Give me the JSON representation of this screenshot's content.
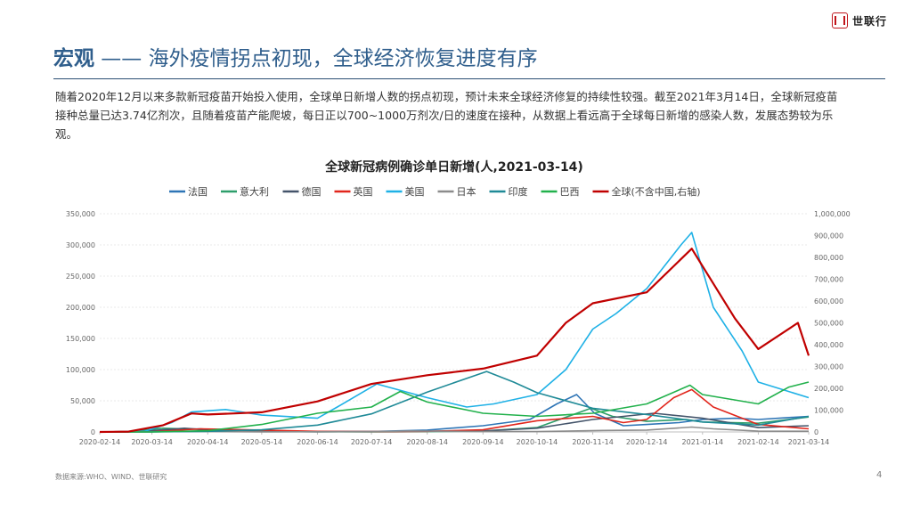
{
  "logo": {
    "text": "世联行"
  },
  "header": {
    "title_bold": "宏观",
    "title_rest": " —— 海外疫情拐点初现，全球经济恢复进度有序"
  },
  "intro": "随着2020年12月以来多款新冠疫苗开始投入使用，全球单日新增人数的拐点初现，预计未来全球经济修复的持续性较强。截至2021年3月14日，全球新冠疫苗接种总量已达3.74亿剂次，且随着疫苗产能爬坡，每日正以700~1000万剂次/日的速度在接种，从数据上看远高于全球每日新增的感染人数，发展态势较为乐观。",
  "footer": {
    "source": "数据来源:WHO、WIND、世联研究",
    "page": "4"
  },
  "chart_data": {
    "type": "line",
    "title": "全球新冠病例确诊单日新增(人,2021-03-14)",
    "legend_position": "top",
    "grid": true,
    "x_start": "2020-02-14",
    "x_end": "2021-03-14",
    "x_ticks": [
      "2020-02-14",
      "2020-03-14",
      "2020-04-14",
      "2020-05-14",
      "2020-06-14",
      "2020-07-14",
      "2020-08-14",
      "2020-09-14",
      "2020-10-14",
      "2020-11-14",
      "2020-12-14",
      "2021-01-14",
      "2021-02-14",
      "2021-03-14"
    ],
    "y_left": {
      "min": 0,
      "max": 350000,
      "ticks": [
        "0",
        "50,000",
        "100,000",
        "150,000",
        "200,000",
        "250,000",
        "300,000",
        "350,000"
      ]
    },
    "y_right": {
      "min": 0,
      "max": 1000000,
      "ticks": [
        "0",
        "100,000",
        "200,000",
        "300,000",
        "400,000",
        "500,000",
        "600,000",
        "700,000",
        "800,000",
        "900,000",
        "1,000,000"
      ]
    },
    "series": [
      {
        "name": "法国",
        "color": "#2e75b6",
        "axis": "left",
        "points": [
          [
            "2020-02-14",
            0
          ],
          [
            "2020-03-01",
            100
          ],
          [
            "2020-03-25",
            4000
          ],
          [
            "2020-04-10",
            5000
          ],
          [
            "2020-05-01",
            1000
          ],
          [
            "2020-06-01",
            500
          ],
          [
            "2020-07-15",
            800
          ],
          [
            "2020-08-14",
            3000
          ],
          [
            "2020-09-14",
            10000
          ],
          [
            "2020-10-10",
            20000
          ],
          [
            "2020-10-25",
            45000
          ],
          [
            "2020-11-05",
            60000
          ],
          [
            "2020-11-15",
            30000
          ],
          [
            "2020-12-01",
            10000
          ],
          [
            "2020-12-14",
            12000
          ],
          [
            "2021-01-01",
            15000
          ],
          [
            "2021-01-14",
            20000
          ],
          [
            "2021-02-01",
            22000
          ],
          [
            "2021-02-14",
            20000
          ],
          [
            "2021-03-14",
            25000
          ]
        ]
      },
      {
        "name": "意大利",
        "color": "#2e9e6b",
        "axis": "left",
        "points": [
          [
            "2020-02-14",
            0
          ],
          [
            "2020-03-01",
            500
          ],
          [
            "2020-03-20",
            6000
          ],
          [
            "2020-04-10",
            4000
          ],
          [
            "2020-05-10",
            1000
          ],
          [
            "2020-06-14",
            300
          ],
          [
            "2020-07-14",
            200
          ],
          [
            "2020-08-14",
            500
          ],
          [
            "2020-09-14",
            1500
          ],
          [
            "2020-10-14",
            7000
          ],
          [
            "2020-11-13",
            38000
          ],
          [
            "2020-11-25",
            25000
          ],
          [
            "2020-12-14",
            17000
          ],
          [
            "2021-01-05",
            20000
          ],
          [
            "2021-01-14",
            16000
          ],
          [
            "2021-02-14",
            14000
          ],
          [
            "2021-03-14",
            24000
          ]
        ]
      },
      {
        "name": "德国",
        "color": "#44546a",
        "axis": "left",
        "points": [
          [
            "2020-02-14",
            0
          ],
          [
            "2020-03-10",
            1000
          ],
          [
            "2020-04-01",
            6000
          ],
          [
            "2020-04-20",
            2000
          ],
          [
            "2020-05-14",
            700
          ],
          [
            "2020-06-14",
            300
          ],
          [
            "2020-07-14",
            400
          ],
          [
            "2020-08-14",
            1200
          ],
          [
            "2020-09-14",
            1500
          ],
          [
            "2020-10-14",
            6000
          ],
          [
            "2020-11-14",
            20000
          ],
          [
            "2020-12-18",
            30000
          ],
          [
            "2021-01-14",
            22000
          ],
          [
            "2021-02-14",
            7000
          ],
          [
            "2021-03-14",
            10000
          ]
        ]
      },
      {
        "name": "英国",
        "color": "#e1261c",
        "axis": "left",
        "points": [
          [
            "2020-02-14",
            0
          ],
          [
            "2020-03-14",
            300
          ],
          [
            "2020-04-10",
            5000
          ],
          [
            "2020-05-14",
            3000
          ],
          [
            "2020-06-14",
            1000
          ],
          [
            "2020-07-14",
            600
          ],
          [
            "2020-08-14",
            1000
          ],
          [
            "2020-09-14",
            3500
          ],
          [
            "2020-10-14",
            18000
          ],
          [
            "2020-11-14",
            25000
          ],
          [
            "2020-12-01",
            15000
          ],
          [
            "2020-12-14",
            20000
          ],
          [
            "2020-12-29",
            55000
          ],
          [
            "2021-01-08",
            68000
          ],
          [
            "2021-01-20",
            40000
          ],
          [
            "2021-02-14",
            12000
          ],
          [
            "2021-03-14",
            5000
          ]
        ]
      },
      {
        "name": "美国",
        "color": "#1fb1e6",
        "axis": "left",
        "points": [
          [
            "2020-02-14",
            0
          ],
          [
            "2020-03-10",
            1000
          ],
          [
            "2020-03-25",
            15000
          ],
          [
            "2020-04-05",
            32000
          ],
          [
            "2020-04-24",
            36000
          ],
          [
            "2020-05-14",
            27000
          ],
          [
            "2020-06-14",
            22000
          ],
          [
            "2020-06-25",
            40000
          ],
          [
            "2020-07-17",
            77000
          ],
          [
            "2020-08-14",
            55000
          ],
          [
            "2020-09-05",
            40000
          ],
          [
            "2020-09-20",
            45000
          ],
          [
            "2020-10-14",
            60000
          ],
          [
            "2020-10-30",
            100000
          ],
          [
            "2020-11-14",
            165000
          ],
          [
            "2020-11-27",
            190000
          ],
          [
            "2020-12-14",
            230000
          ],
          [
            "2021-01-02",
            300000
          ],
          [
            "2021-01-08",
            320000
          ],
          [
            "2021-01-20",
            200000
          ],
          [
            "2021-02-05",
            130000
          ],
          [
            "2021-02-14",
            80000
          ],
          [
            "2021-03-14",
            55000
          ]
        ]
      },
      {
        "name": "日本",
        "color": "#8c8c8c",
        "axis": "left",
        "points": [
          [
            "2020-02-14",
            0
          ],
          [
            "2020-04-14",
            500
          ],
          [
            "2020-05-14",
            100
          ],
          [
            "2020-07-14",
            600
          ],
          [
            "2020-08-05",
            1500
          ],
          [
            "2020-09-14",
            600
          ],
          [
            "2020-10-14",
            600
          ],
          [
            "2020-11-20",
            2500
          ],
          [
            "2020-12-14",
            3000
          ],
          [
            "2021-01-08",
            7800
          ],
          [
            "2021-01-20",
            5000
          ],
          [
            "2021-02-14",
            1300
          ],
          [
            "2021-03-14",
            1200
          ]
        ]
      },
      {
        "name": "印度",
        "color": "#1f8a97",
        "axis": "left",
        "points": [
          [
            "2020-02-14",
            0
          ],
          [
            "2020-03-14",
            50
          ],
          [
            "2020-04-14",
            1000
          ],
          [
            "2020-05-14",
            3500
          ],
          [
            "2020-06-14",
            11000
          ],
          [
            "2020-07-14",
            29000
          ],
          [
            "2020-08-14",
            64000
          ],
          [
            "2020-09-16",
            97000
          ],
          [
            "2020-10-01",
            80000
          ],
          [
            "2020-10-14",
            63000
          ],
          [
            "2020-11-14",
            38000
          ],
          [
            "2020-12-14",
            28000
          ],
          [
            "2021-01-14",
            16000
          ],
          [
            "2021-02-14",
            11000
          ],
          [
            "2021-03-14",
            25000
          ]
        ]
      },
      {
        "name": "巴西",
        "color": "#22b14c",
        "axis": "left",
        "points": [
          [
            "2020-02-14",
            0
          ],
          [
            "2020-03-14",
            50
          ],
          [
            "2020-04-14",
            2000
          ],
          [
            "2020-05-14",
            12000
          ],
          [
            "2020-06-14",
            30000
          ],
          [
            "2020-07-14",
            40000
          ],
          [
            "2020-07-30",
            65000
          ],
          [
            "2020-08-14",
            48000
          ],
          [
            "2020-09-14",
            30000
          ],
          [
            "2020-10-14",
            25000
          ],
          [
            "2020-11-14",
            30000
          ],
          [
            "2020-12-14",
            45000
          ],
          [
            "2021-01-07",
            75000
          ],
          [
            "2021-01-14",
            60000
          ],
          [
            "2021-02-14",
            45000
          ],
          [
            "2021-03-03",
            72000
          ],
          [
            "2021-03-14",
            80000
          ]
        ]
      },
      {
        "name": "全球(不含中国,右轴)",
        "color": "#c00000",
        "axis": "right",
        "points": [
          [
            "2020-02-14",
            0
          ],
          [
            "2020-03-01",
            1500
          ],
          [
            "2020-03-20",
            30000
          ],
          [
            "2020-04-05",
            85000
          ],
          [
            "2020-04-14",
            80000
          ],
          [
            "2020-05-14",
            90000
          ],
          [
            "2020-06-14",
            140000
          ],
          [
            "2020-07-14",
            220000
          ],
          [
            "2020-08-14",
            260000
          ],
          [
            "2020-09-14",
            290000
          ],
          [
            "2020-10-14",
            350000
          ],
          [
            "2020-10-30",
            500000
          ],
          [
            "2020-11-14",
            590000
          ],
          [
            "2020-12-14",
            640000
          ],
          [
            "2021-01-08",
            840000
          ],
          [
            "2021-01-14",
            760000
          ],
          [
            "2021-02-01",
            520000
          ],
          [
            "2021-02-14",
            380000
          ],
          [
            "2021-03-08",
            500000
          ],
          [
            "2021-03-14",
            350000
          ]
        ]
      }
    ]
  }
}
